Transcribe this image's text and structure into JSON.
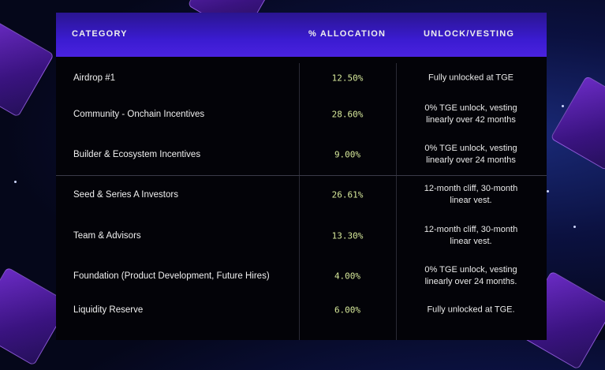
{
  "colors": {
    "accent_pct": "#d6e89a",
    "header": "#3a1bd0"
  },
  "table": {
    "headers": [
      "CATEGORY",
      "% ALLOCATION",
      "UNLOCK/VESTING"
    ],
    "rows": [
      {
        "category": "Airdrop #1",
        "allocation": "12.50%",
        "vesting": "Fully unlocked at TGE"
      },
      {
        "category": "Community - Onchain Incentives",
        "allocation": "28.60%",
        "vesting": "0% TGE unlock, vesting linearly over 42 months"
      },
      {
        "category": "Builder & Ecosystem Incentives",
        "allocation": "9.00%",
        "vesting": "0% TGE unlock, vesting linearly over 24 months"
      },
      {
        "category": "Seed & Series A Investors",
        "allocation": "26.61%",
        "vesting": "12-month cliff, 30-month linear vest."
      },
      {
        "category": "Team & Advisors",
        "allocation": "13.30%",
        "vesting": "12-month cliff, 30-month linear vest."
      },
      {
        "category": "Foundation (Product Development, Future Hires)",
        "allocation": "4.00%",
        "vesting": "0% TGE unlock, vesting linearly over 24 months."
      },
      {
        "category": "Liquidity Reserve",
        "allocation": "6.00%",
        "vesting": "Fully unlocked at TGE."
      }
    ]
  }
}
